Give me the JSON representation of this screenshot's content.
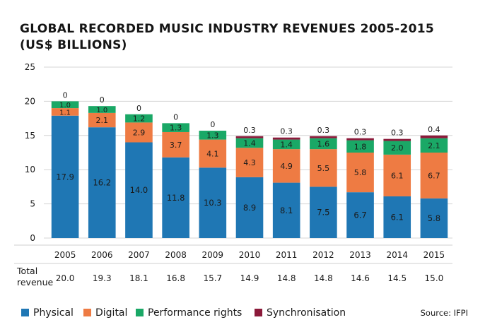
{
  "chart_data": {
    "type": "bar",
    "stacked": true,
    "title": "GLOBAL RECORDED MUSIC INDUSTRY REVENUES 2005-2015",
    "subtitle": "(US$ BILLIONS)",
    "categories": [
      "2005",
      "2006",
      "2007",
      "2008",
      "2009",
      "2010",
      "2011",
      "2012",
      "2013",
      "2014",
      "2015"
    ],
    "ylim": [
      0,
      25
    ],
    "yticks": [
      0,
      5,
      10,
      15,
      20,
      25
    ],
    "grid": "horizontal",
    "legend_position": "bottom",
    "series": [
      {
        "name": "Physical",
        "color": "#1f77b4",
        "values": [
          17.9,
          16.2,
          14.0,
          11.8,
          10.3,
          8.9,
          8.1,
          7.5,
          6.7,
          6.1,
          5.8
        ],
        "labels": [
          "17.9",
          "16.2",
          "14.0",
          "11.8",
          "10.3",
          "8.9",
          "8.1",
          "7.5",
          "6.7",
          "6.1",
          "5.8"
        ]
      },
      {
        "name": "Digital",
        "color": "#ee7b43",
        "values": [
          1.1,
          2.1,
          2.9,
          3.7,
          4.1,
          4.3,
          4.9,
          5.5,
          5.8,
          6.1,
          6.7
        ],
        "labels": [
          "1.1",
          "2.1",
          "2.9",
          "3.7",
          "4.1",
          "4.3",
          "4.9",
          "5.5",
          "5.8",
          "6.1",
          "6.7"
        ]
      },
      {
        "name": "Performance rights",
        "color": "#1aa866",
        "values": [
          1.0,
          1.0,
          1.2,
          1.3,
          1.3,
          1.4,
          1.4,
          1.6,
          1.8,
          2.0,
          2.1
        ],
        "labels": [
          "1.0",
          "1.0",
          "1.2",
          "1.3",
          "1.3",
          "1.4",
          "1.4",
          "1.6",
          "1.8",
          "2.0",
          "2.1"
        ]
      },
      {
        "name": "Synchronisation",
        "color": "#8b1a3a",
        "values": [
          0,
          0,
          0,
          0,
          0,
          0.3,
          0.3,
          0.3,
          0.3,
          0.3,
          0.4
        ],
        "labels": [
          "0",
          "0",
          "0",
          "0",
          "0",
          "0.3",
          "0.3",
          "0.3",
          "0.3",
          "0.3",
          "0.4"
        ]
      }
    ],
    "total_revenue": {
      "label_line1": "Total",
      "label_line2": "revenue",
      "values": [
        "20.0",
        "19.3",
        "18.1",
        "16.8",
        "15.7",
        "14.9",
        "14.8",
        "14.8",
        "14.6",
        "14.5",
        "15.0"
      ]
    },
    "source": "Source: IFPI"
  }
}
